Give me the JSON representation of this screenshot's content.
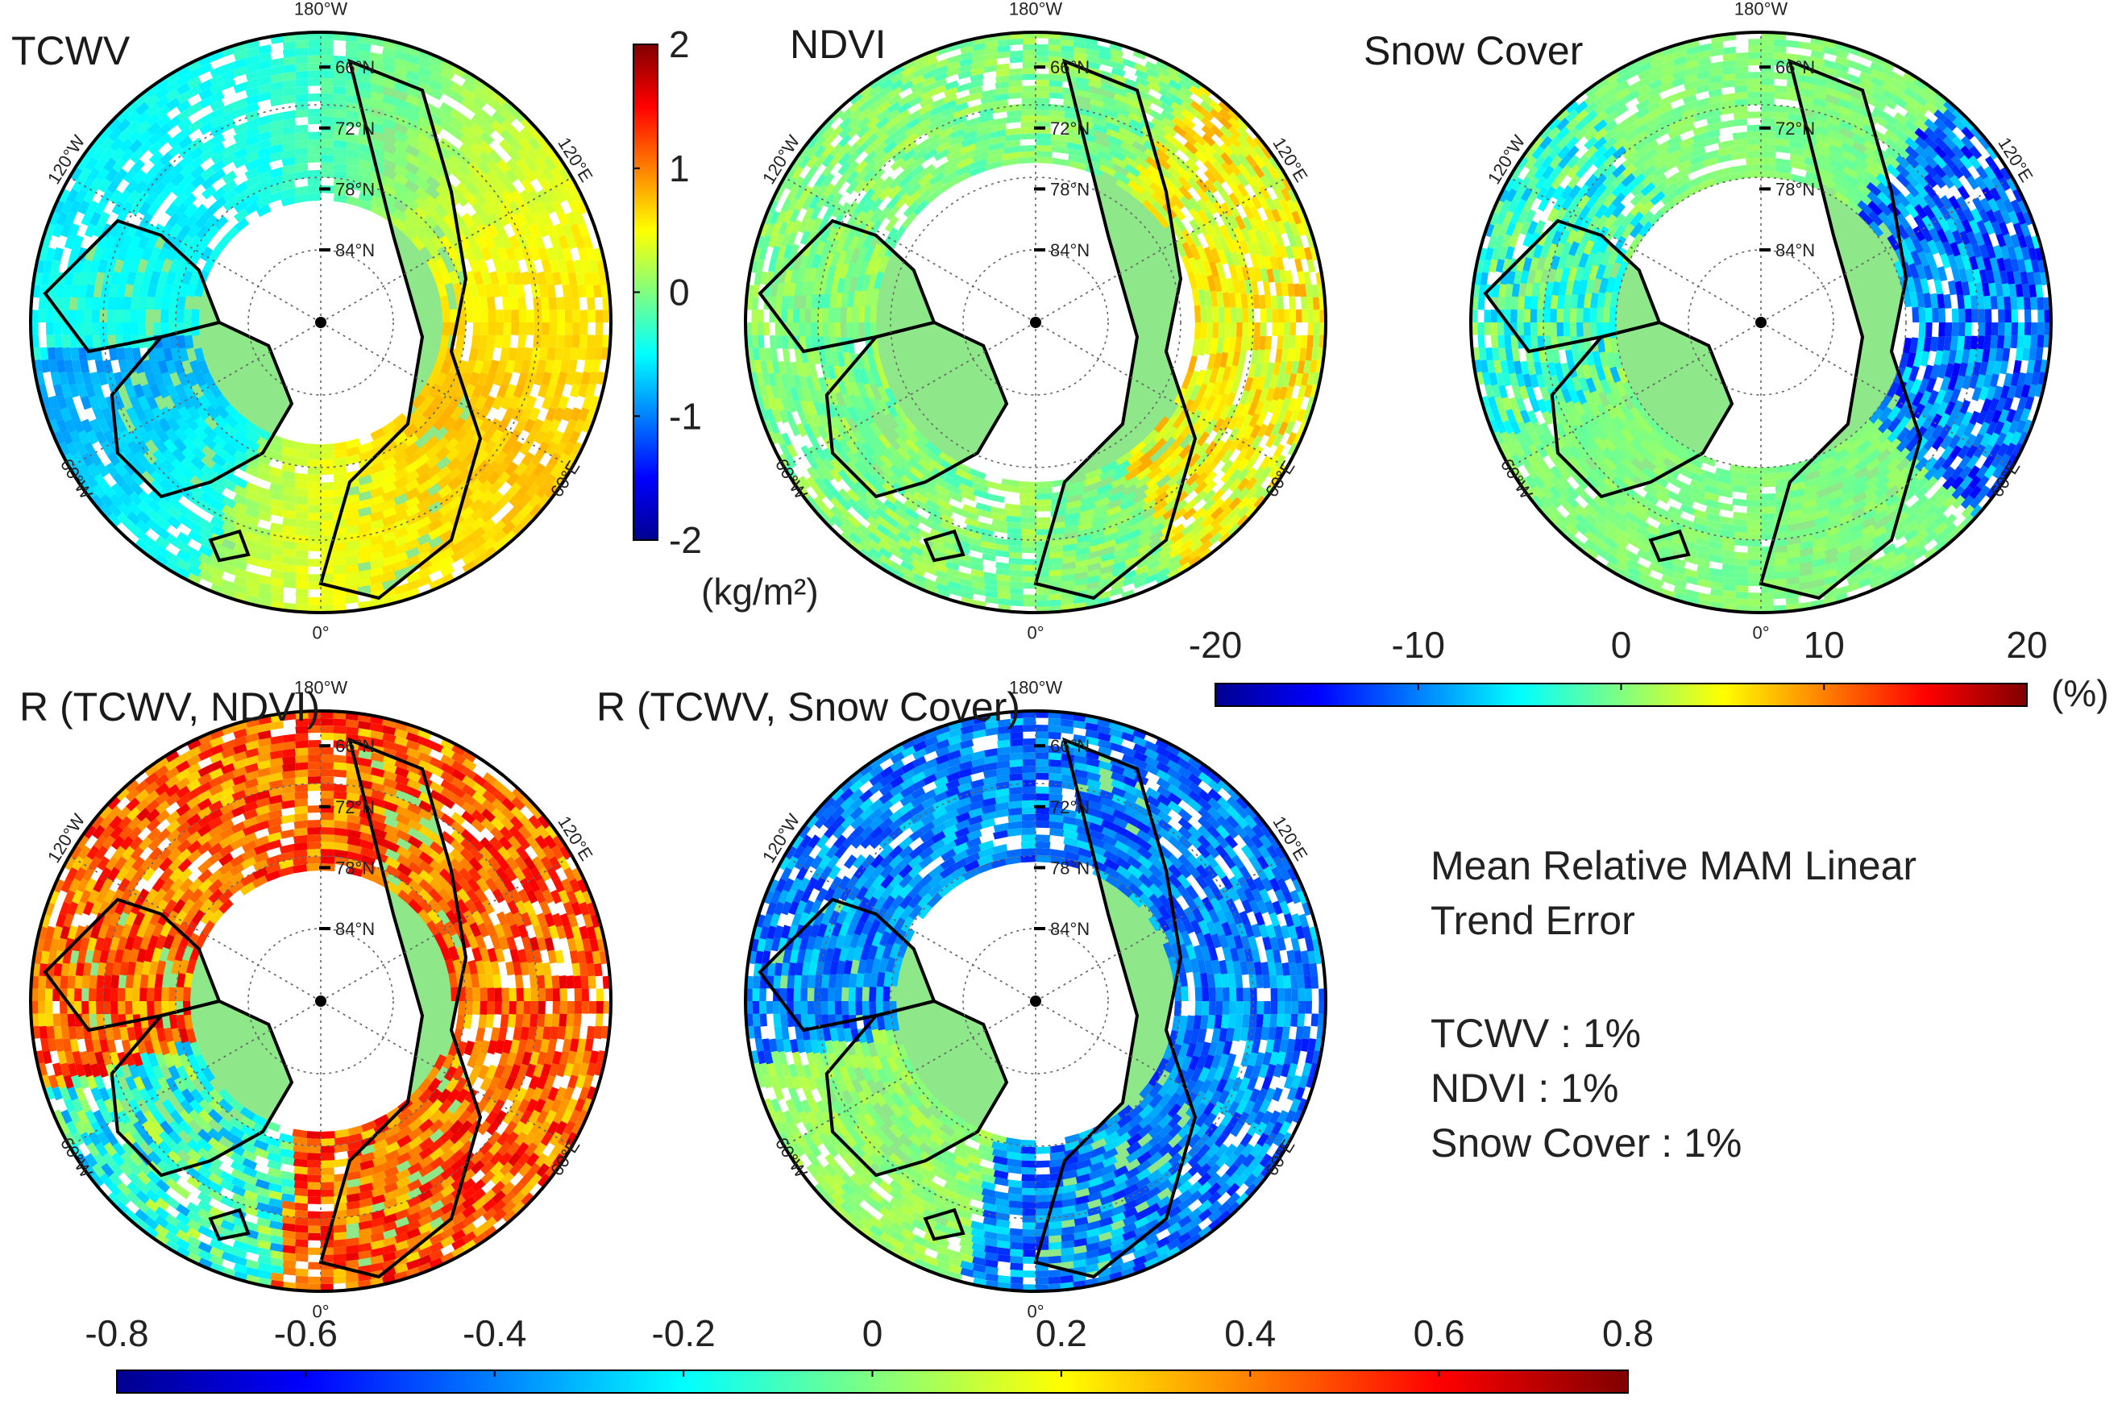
{
  "chart_data": [
    {
      "type": "heatmap",
      "projection": "north-polar-stereographic",
      "title": "TCWV",
      "description_units": "kg/m2",
      "lat_labels": [
        "66°N",
        "72°N",
        "78°N",
        "84°N"
      ],
      "lon_labels": [
        "180°W",
        "120°E",
        "60°E",
        "0°",
        "60°W",
        "120°W"
      ],
      "colorbar": {
        "title": "(kg/m²)",
        "range": [
          -2,
          2
        ],
        "ticks": [
          "2",
          "1",
          "0",
          "-1",
          "-2"
        ],
        "orientation": "vertical"
      }
    },
    {
      "type": "heatmap",
      "projection": "north-polar-stereographic",
      "title": "NDVI",
      "lat_labels": [
        "66°N",
        "72°N",
        "78°N",
        "84°N"
      ],
      "lon_labels": [
        "180°W",
        "120°E",
        "60°E",
        "0°",
        "60°W",
        "120°W"
      ]
    },
    {
      "type": "heatmap",
      "projection": "north-polar-stereographic",
      "title": "Snow Cover",
      "lat_labels": [
        "66°N",
        "72°N",
        "78°N",
        "84°N"
      ],
      "lon_labels": [
        "180°W",
        "120°E",
        "60°E",
        "0°",
        "60°W",
        "120°W"
      ],
      "colorbar": {
        "title": "(%)",
        "range": [
          -20,
          20
        ],
        "ticks": [
          "-20",
          "-10",
          "0",
          "10",
          "20"
        ],
        "orientation": "horizontal"
      }
    },
    {
      "type": "heatmap",
      "projection": "north-polar-stereographic",
      "title": "R (TCWV, NDVI)",
      "lat_labels": [
        "66°N",
        "72°N",
        "78°N",
        "84°N"
      ],
      "lon_labels": [
        "180°W",
        "120°E",
        "60°E",
        "0°",
        "60°W",
        "120°W"
      ]
    },
    {
      "type": "heatmap",
      "projection": "north-polar-stereographic",
      "title": "R (TCWV, Snow Cover)",
      "lat_labels": [
        "66°N",
        "72°N",
        "78°N",
        "84°N"
      ],
      "lon_labels": [
        "180°W",
        "120°E",
        "60°E",
        "0°",
        "60°W",
        "120°W"
      ],
      "colorbar": {
        "title": "",
        "range": [
          -0.8,
          0.8
        ],
        "ticks": [
          "-0.8",
          "-0.6",
          "-0.4",
          "-0.2",
          "0",
          "0.2",
          "0.4",
          "0.6",
          "0.8"
        ],
        "orientation": "horizontal"
      }
    }
  ],
  "annotation": {
    "title_line1": "Mean Relative MAM Linear",
    "title_line2": "Trend Error",
    "items": [
      "TCWV : 1%",
      "NDVI : 1%",
      "Snow Cover : 1%"
    ]
  },
  "colors": {
    "jet": [
      "#00008f",
      "#0000ff",
      "#0080ff",
      "#00ffff",
      "#80ff80",
      "#ffff00",
      "#ff8000",
      "#ff0000",
      "#800000"
    ],
    "land_neutral": "#8ee88a",
    "coast": "#000000",
    "grid": "#666666"
  }
}
